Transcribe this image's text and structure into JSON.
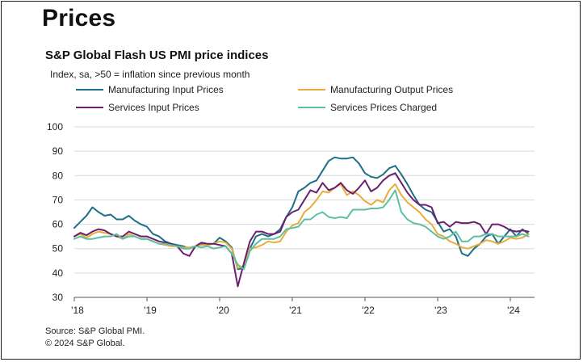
{
  "page": {
    "heading": "Prices",
    "source_line": "Source: S&P Global PMI.",
    "copyright_line": "© 2024 S&P Global."
  },
  "colors": {
    "manufacturing_input": "#1f6e87",
    "manufacturing_output": "#e8ac3c",
    "services_input": "#6b1f6f",
    "services_charged": "#5dbfa3",
    "gridline": "#d9d9d9"
  },
  "chart_data": {
    "type": "line",
    "title": "S&P Global Flash US PMI price indices",
    "subtitle": "Index, sa, >50 = inflation  since previous  month",
    "xlabel": "",
    "ylabel": "",
    "ylim": [
      30,
      100
    ],
    "yticks": [
      30,
      40,
      50,
      60,
      70,
      80,
      90,
      100
    ],
    "xticks": [
      {
        "label": "'18",
        "month_index": 0
      },
      {
        "label": "'19",
        "month_index": 12
      },
      {
        "label": "'20",
        "month_index": 24
      },
      {
        "label": "'21",
        "month_index": 36
      },
      {
        "label": "'22",
        "month_index": 48
      },
      {
        "label": "'23",
        "month_index": 60
      },
      {
        "label": "'24",
        "month_index": 72
      }
    ],
    "x_start": "2018-01",
    "x_end": "2024-04",
    "grid": "horizontal",
    "legend_position": "top",
    "series": [
      {
        "name": "Manufacturing Input Prices",
        "color_key": "manufacturing_input",
        "values": [
          58.5,
          61,
          63.5,
          67,
          65,
          63.5,
          64,
          62,
          62,
          63.5,
          61.5,
          60,
          59,
          56,
          55,
          53,
          52,
          51.5,
          51,
          50,
          51,
          52,
          51.5,
          52,
          54.5,
          53,
          50.5,
          41.5,
          42,
          50,
          55,
          56,
          55,
          56,
          58,
          63,
          67,
          73.5,
          75,
          77,
          78,
          82,
          86,
          87.5,
          87,
          87,
          87.5,
          85,
          81,
          79.5,
          79,
          80.5,
          83,
          84,
          80.5,
          76.5,
          72,
          68,
          66,
          65,
          61,
          57,
          58,
          55,
          48,
          47,
          50,
          52,
          55,
          56,
          52,
          55,
          58,
          55,
          58,
          56
        ]
      },
      {
        "name": "Manufacturing Output Prices",
        "color_key": "manufacturing_output",
        "values": [
          55,
          56,
          54.5,
          56,
          57,
          56.5,
          56,
          55,
          54,
          56,
          55,
          54,
          54,
          53,
          52,
          51.5,
          51,
          51,
          50.5,
          50.5,
          51,
          51.5,
          51.5,
          52,
          53,
          52.5,
          50,
          42,
          43,
          50,
          50.5,
          51.5,
          53,
          52.5,
          53,
          57,
          59.5,
          60.5,
          65,
          67,
          70,
          73.5,
          73,
          75,
          76.5,
          72,
          73.5,
          72,
          69.5,
          68,
          70,
          69,
          74,
          76.5,
          72,
          69,
          67,
          65,
          62,
          60,
          56,
          55,
          53,
          52,
          50.5,
          50,
          51,
          52,
          53.5,
          53,
          52,
          53,
          54.5,
          54,
          54.5,
          56
        ]
      },
      {
        "name": "Services Input Prices",
        "color_key": "services_input",
        "values": [
          55,
          56.5,
          55.5,
          57,
          58,
          57.5,
          56,
          55,
          55,
          57,
          56,
          55,
          55,
          54,
          53,
          52.5,
          52,
          51,
          48,
          47,
          51,
          52.5,
          52,
          52,
          51.5,
          51,
          48,
          34.5,
          44,
          53,
          57,
          57,
          56,
          56,
          57,
          63,
          65,
          66,
          70,
          74,
          73,
          77,
          74,
          75,
          77,
          74,
          72.5,
          75,
          78,
          73.5,
          75,
          78,
          80,
          81,
          77,
          73,
          70,
          68,
          68,
          67,
          60.5,
          61,
          59,
          61,
          60.5,
          60.5,
          61,
          60,
          56,
          60,
          60,
          59,
          57.5,
          57,
          57.5,
          57
        ]
      },
      {
        "name": "Services Prices Charged",
        "color_key": "services_charged",
        "values": [
          54,
          55,
          54,
          54,
          54.5,
          55,
          55,
          56,
          54,
          55,
          55,
          54,
          54,
          53,
          52,
          52,
          51.5,
          51,
          50,
          50,
          51,
          50.5,
          51,
          50,
          50.5,
          51,
          48,
          43.5,
          41.5,
          49,
          52,
          54,
          54,
          54,
          55,
          58,
          58.5,
          59,
          62,
          62,
          64,
          65,
          63,
          62.5,
          63,
          62.5,
          66,
          66,
          66,
          66.5,
          66.5,
          67,
          70,
          74,
          65,
          62,
          60.5,
          60,
          59,
          57,
          55,
          54,
          55,
          57,
          53,
          53,
          55,
          55,
          56,
          56,
          55,
          55,
          55,
          55,
          56,
          55
        ]
      }
    ]
  }
}
